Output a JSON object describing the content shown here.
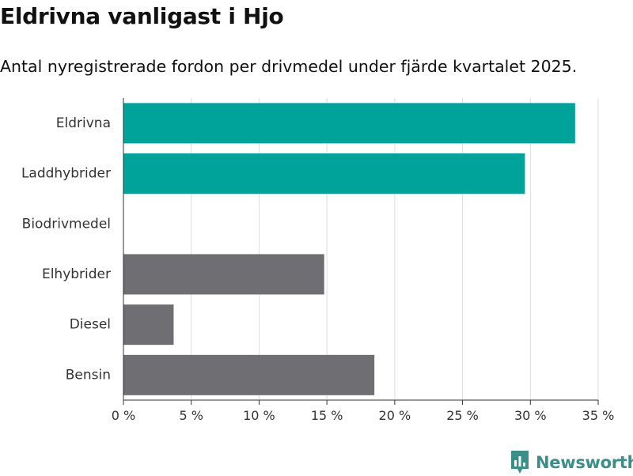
{
  "header": {
    "title": "Eldrivna vanligast i Hjo",
    "subtitle": "Antal nyregistrerade fordon per drivmedel under fjärde kvartalet 2025."
  },
  "chart_data": {
    "type": "bar",
    "orientation": "horizontal",
    "categories": [
      "Eldrivna",
      "Laddhybrider",
      "Biodrivmedel",
      "Elhybrider",
      "Diesel",
      "Bensin"
    ],
    "values": [
      33.3,
      29.6,
      0,
      14.8,
      3.7,
      18.5
    ],
    "highlight": [
      true,
      true,
      false,
      false,
      false,
      false
    ],
    "xlim": [
      0,
      35
    ],
    "xticks": [
      0,
      5,
      10,
      15,
      20,
      25,
      30,
      35
    ],
    "xtick_labels": [
      "0 %",
      "5 %",
      "10 %",
      "15 %",
      "20 %",
      "25 %",
      "30 %",
      "35 %"
    ],
    "grid": true,
    "colors": {
      "highlight": "#00a39a",
      "default": "#6e6e73",
      "grid": "#dddddd",
      "axis": "#333333"
    }
  },
  "brand": {
    "name": "Newsworthy",
    "icon": "bar-chart-logo-icon",
    "color": "#3a8f88"
  }
}
